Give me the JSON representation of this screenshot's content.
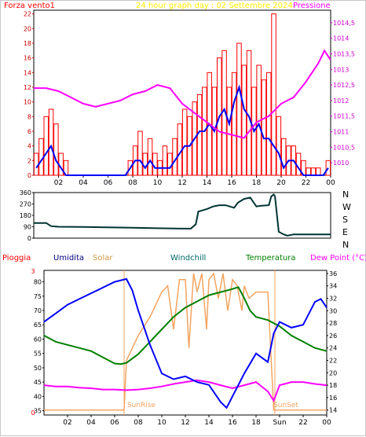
{
  "top_panel": {
    "title": "24 hour graph day : 02 Settembre 2024",
    "left_label": "Forza vento1",
    "right_label": "Pressione",
    "title_color": "#ffff00",
    "left_color": "#ff0000",
    "right_color": "#ff00ff"
  },
  "mid_panel": {
    "compass_labels": [
      "N",
      "W",
      "S",
      "E",
      "N"
    ]
  },
  "bottom_panel": {
    "labels": {
      "pioggia": "Pioggia",
      "umidita": "Umidita",
      "solar": "Solar",
      "windchill": "Windchill",
      "temperatura": "Temperatura",
      "dewpoint": "Dew Point (°C)"
    },
    "label_colors": {
      "pioggia": "#ff0000",
      "umidita": "#000080",
      "solar": "#cc9944",
      "windchill": "#006666",
      "temperatura": "#008000",
      "dewpoint": "#ff00ff"
    },
    "sunrise_label": "SunRise",
    "sunset_label": "SunSet",
    "sun_label": "Sun"
  },
  "chart_data": [
    {
      "type": "line",
      "title": "24 hour graph day : 02 Settembre 2024",
      "x_ticks": [
        "02",
        "04",
        "06",
        "08",
        "10",
        "12",
        "14",
        "16",
        "18",
        "20",
        "22",
        "00"
      ],
      "y_left_ticks": [
        "0",
        "2",
        "4",
        "6",
        "8",
        "10",
        "12",
        "14",
        "16",
        "18",
        "20",
        "22"
      ],
      "y_right_ticks": [
        "1010",
        "1010,5",
        "1011",
        "1011,5",
        "1012",
        "1012,5",
        "1013",
        "1013,5",
        "1014",
        "1014,5"
      ],
      "ylim_left": [
        0,
        22.5
      ],
      "ylim_right": [
        1009.6,
        1014.9
      ],
      "series": [
        {
          "name": "Forza vento1",
          "color": "#ff0000",
          "axis": "left",
          "style": "bars",
          "x": [
            0.2,
            0.6,
            1.0,
            1.4,
            1.8,
            2.2,
            2.6,
            3.0,
            3.4,
            3.8,
            4.2,
            4.6,
            5.0,
            5.4,
            5.8,
            6.2,
            6.6,
            7.0,
            7.4,
            7.8,
            8.2,
            8.6,
            9.0,
            9.4,
            9.8,
            10.2,
            10.6,
            11.0,
            11.4,
            11.8,
            12.2,
            12.6,
            13.0,
            13.4,
            13.8,
            14.2,
            14.6,
            15.0,
            15.4,
            15.8,
            16.2,
            16.6,
            17.0,
            17.4,
            17.8,
            18.2,
            18.6,
            19.0,
            19.4,
            19.8,
            20.2,
            20.6,
            21.0,
            21.4,
            21.8,
            22.2,
            22.6,
            23.0,
            23.4,
            23.8
          ],
          "y": [
            3,
            5,
            8,
            9,
            7,
            3,
            2,
            0,
            0,
            0,
            0,
            0,
            0,
            0,
            0,
            0,
            0,
            0,
            0,
            2,
            4,
            6,
            3,
            5,
            3,
            2,
            4,
            3,
            5,
            7,
            9,
            8,
            10,
            11,
            12,
            14,
            12,
            16,
            17,
            12,
            14,
            18,
            15,
            17,
            12,
            15,
            13,
            14,
            22,
            8,
            5,
            4,
            4,
            3,
            2,
            1,
            1,
            1,
            0,
            2
          ]
        },
        {
          "name": "Forza vento1 media",
          "color": "#0000ff",
          "axis": "left",
          "style": "line",
          "x": [
            0.2,
            0.6,
            1.0,
            1.4,
            1.8,
            2.2,
            2.6,
            3.0,
            3.4,
            3.8,
            4.2,
            4.6,
            5.0,
            5.4,
            5.8,
            6.2,
            6.6,
            7.0,
            7.4,
            7.8,
            8.2,
            8.6,
            9.0,
            9.4,
            9.8,
            10.2,
            10.6,
            11.0,
            11.4,
            11.8,
            12.2,
            12.6,
            13.0,
            13.4,
            13.8,
            14.2,
            14.6,
            15.0,
            15.4,
            15.8,
            16.2,
            16.6,
            17.0,
            17.4,
            17.8,
            18.2,
            18.6,
            19.0,
            19.4,
            19.8,
            20.2,
            20.6,
            21.0,
            21.4,
            21.8,
            22.2,
            22.6,
            23.0,
            23.4,
            23.8
          ],
          "y": [
            1,
            2,
            3,
            4,
            2,
            1,
            0,
            0,
            0,
            0,
            0,
            0,
            0,
            0,
            0,
            0,
            0,
            0,
            0,
            1,
            2,
            2,
            1,
            2,
            1,
            1,
            1,
            1,
            2,
            3,
            4,
            4,
            5,
            6,
            6,
            7,
            6,
            8,
            9,
            7,
            10,
            12,
            9,
            8,
            6,
            7,
            5,
            5,
            4,
            3,
            1,
            2,
            2,
            1,
            0,
            0,
            0,
            0,
            0,
            1
          ]
        },
        {
          "name": "Pressione",
          "color": "#ff00ff",
          "axis": "right",
          "style": "line",
          "x": [
            0,
            1,
            2,
            3,
            4,
            5,
            6,
            7,
            8,
            9,
            10,
            11,
            12,
            13,
            14,
            15,
            16,
            17,
            18,
            19,
            20,
            21,
            22,
            23,
            23.5,
            24
          ],
          "y": [
            1012.4,
            1012.4,
            1012.3,
            1012.1,
            1011.9,
            1011.8,
            1011.9,
            1012.0,
            1012.2,
            1012.3,
            1012.5,
            1012.4,
            1011.9,
            1011.6,
            1011.3,
            1011.0,
            1010.9,
            1010.8,
            1011.3,
            1011.5,
            1011.9,
            1012.1,
            1012.6,
            1013.2,
            1013.6,
            1013.3
          ]
        }
      ]
    },
    {
      "type": "line",
      "title": "",
      "x_ticks": [
        "02",
        "04",
        "06",
        "08",
        "10",
        "12",
        "14",
        "16",
        "18",
        "20",
        "22",
        "00"
      ],
      "y_ticks": [
        "0",
        "90",
        "180",
        "270",
        "360"
      ],
      "ylim": [
        0,
        360
      ],
      "series": [
        {
          "name": "Direzione vento",
          "color": "#003333",
          "x": [
            0,
            1,
            1.4,
            2,
            4,
            6,
            8,
            10,
            12,
            12.7,
            13.1,
            13.3,
            14,
            14.5,
            15,
            15.5,
            16.2,
            16.5,
            17,
            17.5,
            18,
            18.3,
            19,
            19.2,
            19.4,
            19.5,
            19.8,
            20.2,
            20.5,
            21,
            22,
            24
          ],
          "y": [
            120,
            120,
            95,
            90,
            88,
            85,
            82,
            78,
            75,
            75,
            110,
            210,
            230,
            250,
            260,
            260,
            240,
            280,
            310,
            320,
            250,
            255,
            260,
            330,
            345,
            330,
            50,
            30,
            20,
            30,
            30,
            30
          ]
        }
      ]
    },
    {
      "type": "line",
      "title": "",
      "x_ticks": [
        "02",
        "04",
        "06",
        "08",
        "10",
        "12",
        "14",
        "16",
        "18",
        "Sun",
        "22",
        "00"
      ],
      "y_left_ticks": [
        "35",
        "40",
        "45",
        "50",
        "55",
        "60",
        "65",
        "70",
        "75",
        "80"
      ],
      "y_right_ticks": [
        "14",
        "16",
        "18",
        "20",
        "22",
        "24",
        "26",
        "28",
        "30",
        "32",
        "34",
        "36"
      ],
      "ylim_left": [
        33.5,
        84
      ],
      "ylim_right": [
        13.2,
        36.5
      ],
      "series": [
        {
          "name": "Umidita",
          "color": "#0000ff",
          "axis": "left",
          "x": [
            0,
            1,
            2,
            3,
            4,
            5,
            6,
            7,
            7.5,
            8,
            9,
            10,
            11,
            12,
            13,
            14,
            15,
            15.5,
            16,
            17,
            18,
            19,
            19.5,
            20,
            21,
            22,
            23,
            23.5,
            24
          ],
          "y": [
            66,
            69,
            72,
            74,
            76,
            78,
            80,
            81,
            77,
            70,
            58,
            48,
            46,
            47,
            45,
            44,
            38,
            36,
            40,
            48,
            55,
            52,
            62,
            66,
            64,
            65,
            73,
            74,
            71
          ]
        },
        {
          "name": "Temperatura",
          "color": "#008000",
          "axis": "right",
          "x": [
            0,
            1,
            2,
            3,
            4,
            5,
            6,
            6.5,
            7,
            8,
            9,
            10,
            11,
            12,
            13,
            14,
            15,
            16,
            16.5,
            17,
            17.5,
            18,
            19,
            20,
            21,
            22,
            23,
            24
          ],
          "y": [
            26,
            25,
            24.5,
            24,
            23.5,
            22.5,
            21.5,
            21.4,
            21.6,
            23,
            25,
            27,
            29,
            30.5,
            31.5,
            32.5,
            33,
            33.5,
            33.8,
            32,
            30,
            29,
            28.5,
            27.5,
            26,
            25,
            24,
            23.5
          ]
        },
        {
          "name": "Dew Point (°C)",
          "color": "#ff00ff",
          "axis": "right",
          "x": [
            0,
            1,
            2,
            3,
            4,
            5,
            6,
            7,
            8,
            9,
            10,
            11,
            12,
            13,
            14,
            15,
            16,
            17,
            18,
            19,
            19.5,
            20,
            21,
            22,
            23,
            24
          ],
          "y": [
            18,
            17.8,
            17.8,
            17.6,
            17.5,
            17.3,
            17.3,
            17.2,
            17.3,
            17.5,
            17.8,
            18.2,
            18.5,
            18.8,
            18.5,
            18,
            17.5,
            18,
            18.5,
            17,
            15.5,
            18,
            18.5,
            18.5,
            18.2,
            18
          ]
        },
        {
          "name": "Solar",
          "color": "#f4a460",
          "axis": "right",
          "x": [
            0,
            6.8,
            7,
            7.5,
            8,
            9,
            10,
            10.5,
            11,
            11.5,
            12,
            12.3,
            12.7,
            13,
            13.4,
            13.8,
            14,
            14.4,
            14.8,
            15.2,
            15.6,
            16,
            16.4,
            16.8,
            17,
            17.4,
            18,
            18.4,
            19,
            19.5,
            20,
            24
          ],
          "y": [
            14,
            14,
            22,
            24,
            26,
            29,
            33,
            34,
            27,
            35,
            35,
            24,
            36,
            33,
            36,
            27,
            35,
            36,
            32,
            36,
            30,
            35,
            34,
            30,
            34,
            32,
            33,
            33,
            33,
            14,
            14,
            14
          ]
        }
      ]
    }
  ]
}
